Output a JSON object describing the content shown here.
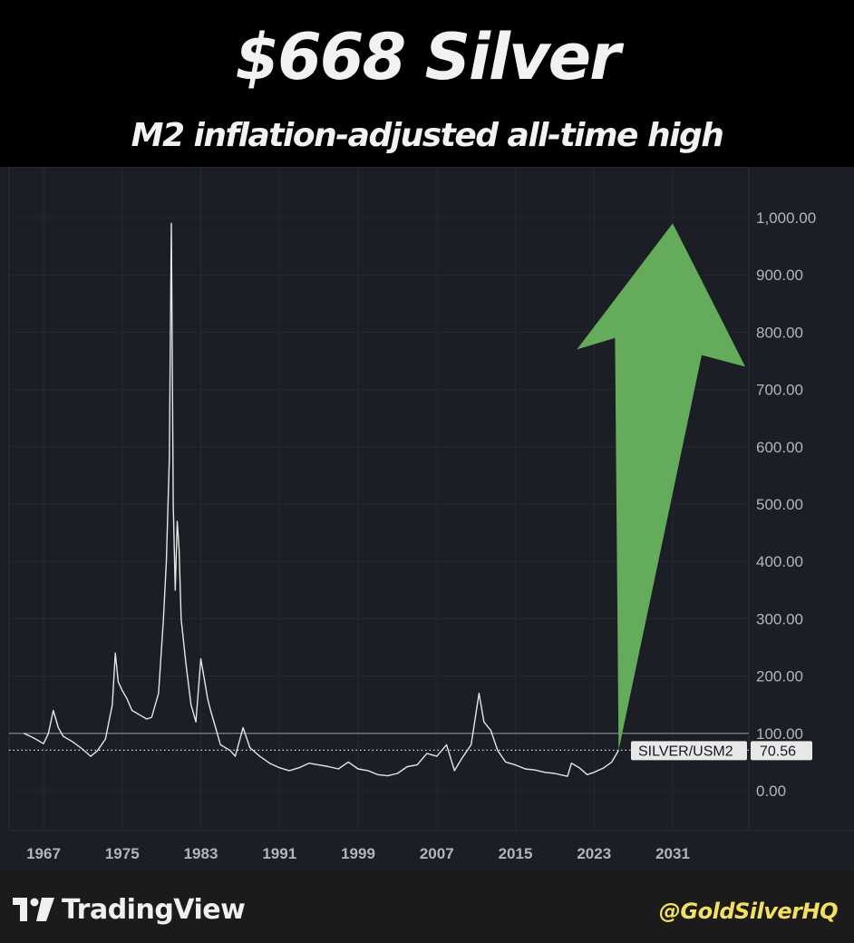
{
  "header": {
    "title": "$668 Silver",
    "subtitle": "M2 inflation-adjusted all-time high"
  },
  "footer": {
    "brand": "TradingView",
    "handle": "@GoldSilverHQ"
  },
  "colors": {
    "background": "#1c1e26",
    "price_line": "#e6e6e6",
    "arrow": "#64ac5c",
    "handle": "#f3e05f"
  },
  "chart_data": {
    "type": "line",
    "series": [
      {
        "name": "SILVER/USM2",
        "points": [
          [
            1965,
            100
          ],
          [
            1966,
            92
          ],
          [
            1967,
            82
          ],
          [
            1967.5,
            100
          ],
          [
            1968,
            140
          ],
          [
            1968.5,
            110
          ],
          [
            1969,
            95
          ],
          [
            1970,
            85
          ],
          [
            1971,
            72
          ],
          [
            1971.8,
            60
          ],
          [
            1972.5,
            70
          ],
          [
            1973.3,
            90
          ],
          [
            1974,
            150
          ],
          [
            1974.3,
            240
          ],
          [
            1974.6,
            190
          ],
          [
            1975,
            175
          ],
          [
            1975.5,
            160
          ],
          [
            1976,
            140
          ],
          [
            1977,
            130
          ],
          [
            1977.5,
            125
          ],
          [
            1978,
            128
          ],
          [
            1978.7,
            170
          ],
          [
            1979.2,
            300
          ],
          [
            1979.5,
            400
          ],
          [
            1979.8,
            580
          ],
          [
            1980,
            990
          ],
          [
            1980.2,
            500
          ],
          [
            1980.4,
            350
          ],
          [
            1980.6,
            470
          ],
          [
            1980.8,
            420
          ],
          [
            1981,
            300
          ],
          [
            1981.5,
            220
          ],
          [
            1982,
            150
          ],
          [
            1982.5,
            120
          ],
          [
            1983,
            230
          ],
          [
            1983.3,
            200
          ],
          [
            1983.7,
            160
          ],
          [
            1984,
            140
          ],
          [
            1984.5,
            110
          ],
          [
            1985,
            80
          ],
          [
            1986,
            70
          ],
          [
            1986.5,
            60
          ],
          [
            1987.3,
            110
          ],
          [
            1988,
            75
          ],
          [
            1989,
            60
          ],
          [
            1990,
            48
          ],
          [
            1991,
            40
          ],
          [
            1992,
            35
          ],
          [
            1993,
            40
          ],
          [
            1994,
            48
          ],
          [
            1995,
            45
          ],
          [
            1996,
            42
          ],
          [
            1997,
            38
          ],
          [
            1998,
            50
          ],
          [
            1999,
            38
          ],
          [
            2000,
            35
          ],
          [
            2001,
            28
          ],
          [
            2002,
            26
          ],
          [
            2003,
            30
          ],
          [
            2004,
            42
          ],
          [
            2005,
            45
          ],
          [
            2006,
            65
          ],
          [
            2007,
            60
          ],
          [
            2008,
            80
          ],
          [
            2008.8,
            35
          ],
          [
            2009.5,
            55
          ],
          [
            2010.5,
            80
          ],
          [
            2011.3,
            170
          ],
          [
            2011.8,
            120
          ],
          [
            2012.5,
            105
          ],
          [
            2013.2,
            70
          ],
          [
            2014,
            50
          ],
          [
            2015,
            45
          ],
          [
            2016,
            38
          ],
          [
            2017,
            36
          ],
          [
            2018,
            32
          ],
          [
            2019,
            30
          ],
          [
            2020.3,
            25
          ],
          [
            2020.7,
            48
          ],
          [
            2021.5,
            40
          ],
          [
            2022.3,
            28
          ],
          [
            2023,
            32
          ],
          [
            2024,
            40
          ],
          [
            2024.8,
            50
          ],
          [
            2025.5,
            70.56
          ]
        ]
      }
    ],
    "x_ticks": [
      "1967",
      "1975",
      "1983",
      "1991",
      "1999",
      "2007",
      "2015",
      "2023",
      "2031"
    ],
    "y_ticks": [
      "0.00",
      "100.00",
      "200.00",
      "300.00",
      "400.00",
      "500.00",
      "600.00",
      "700.00",
      "800.00",
      "900.00",
      "1,000.00"
    ],
    "xlim": [
      1963.5,
      2038.3
    ],
    "ylim": [
      -70,
      1050
    ],
    "reference_lines": [
      100,
      70.56
    ],
    "last_value": 70.56,
    "last_label": "SILVER/USM2",
    "last_value_text": "70.56",
    "arrow_target": [
      2031,
      990
    ],
    "grid": true
  }
}
